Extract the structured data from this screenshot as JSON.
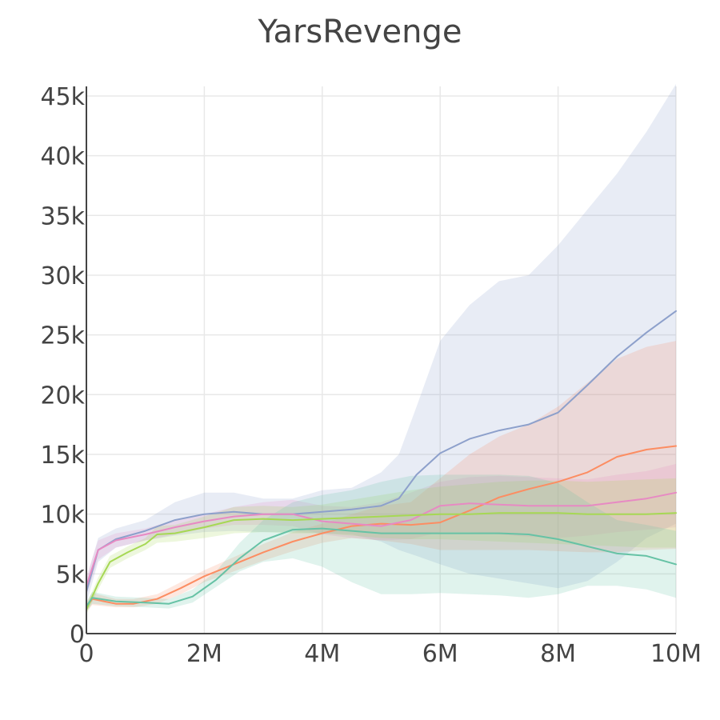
{
  "chart_data": {
    "type": "line",
    "title": "YarsRevenge",
    "xlabel": "",
    "ylabel": "",
    "xlim": [
      0,
      10000000
    ],
    "ylim": [
      0,
      45800
    ],
    "x_ticks": [
      {
        "value": 0,
        "label": "0"
      },
      {
        "value": 2000000,
        "label": "2M"
      },
      {
        "value": 4000000,
        "label": "4M"
      },
      {
        "value": 6000000,
        "label": "6M"
      },
      {
        "value": 8000000,
        "label": "8M"
      },
      {
        "value": 10000000,
        "label": "10M"
      }
    ],
    "y_ticks": [
      {
        "value": 0,
        "label": "0"
      },
      {
        "value": 5000,
        "label": "5k"
      },
      {
        "value": 10000,
        "label": "10k"
      },
      {
        "value": 15000,
        "label": "15k"
      },
      {
        "value": 20000,
        "label": "20k"
      },
      {
        "value": 25000,
        "label": "25k"
      },
      {
        "value": 30000,
        "label": "30k"
      },
      {
        "value": 35000,
        "label": "35k"
      },
      {
        "value": 40000,
        "label": "40k"
      },
      {
        "value": 45000,
        "label": "45k"
      }
    ],
    "grid": true,
    "legend": "none",
    "series": [
      {
        "color": "#8da0cb",
        "x": [
          0,
          200000,
          500000,
          1000000,
          1500000,
          2000000,
          2500000,
          3000000,
          3500000,
          4000000,
          4500000,
          5000000,
          5300000,
          5600000,
          6000000,
          6500000,
          7000000,
          7500000,
          8000000,
          8500000,
          9000000,
          9500000,
          10000000
        ],
        "y": [
          3500,
          7000,
          7900,
          8600,
          9500,
          10000,
          10200,
          10000,
          10000,
          10200,
          10400,
          10700,
          11300,
          13300,
          15100,
          16300,
          17000,
          17500,
          18500,
          20800,
          23200,
          25200,
          27000
        ],
        "lower": [
          2500,
          6000,
          7200,
          7800,
          8200,
          8500,
          8600,
          8500,
          8500,
          8400,
          8300,
          7700,
          7000,
          6500,
          5800,
          5000,
          4600,
          4200,
          3800,
          4400,
          6000,
          8000,
          9200
        ],
        "upper": [
          4500,
          8000,
          8800,
          9500,
          11000,
          11800,
          11800,
          11300,
          11300,
          12000,
          12200,
          13500,
          15000,
          19000,
          24500,
          27500,
          29500,
          30000,
          32500,
          35500,
          38500,
          42000,
          46000
        ]
      },
      {
        "color": "#fc8d62",
        "x": [
          0,
          100000,
          500000,
          800000,
          1200000,
          1600000,
          2000000,
          2500000,
          3000000,
          3500000,
          4000000,
          4500000,
          5000000,
          5500000,
          6000000,
          6500000,
          7000000,
          7500000,
          8000000,
          8500000,
          9000000,
          9500000,
          10000000
        ],
        "y": [
          2200,
          2900,
          2500,
          2500,
          2900,
          3800,
          4800,
          5800,
          6800,
          7700,
          8400,
          9000,
          9200,
          9100,
          9300,
          10300,
          11400,
          12100,
          12700,
          13500,
          14800,
          15400,
          15700
        ],
        "lower": [
          1800,
          2400,
          2200,
          2200,
          2500,
          3300,
          4300,
          5200,
          6100,
          6900,
          7600,
          8000,
          7800,
          7500,
          7000,
          7000,
          7000,
          7000,
          6900,
          6800,
          6800,
          7000,
          7100
        ],
        "upper": [
          2600,
          3400,
          2900,
          2900,
          3300,
          4300,
          5300,
          6400,
          7500,
          8500,
          9200,
          10000,
          10700,
          11000,
          13000,
          15000,
          16500,
          17500,
          19000,
          21000,
          23000,
          24000,
          24500
        ]
      },
      {
        "color": "#e78ac3",
        "x": [
          0,
          200000,
          500000,
          1000000,
          1500000,
          2000000,
          2500000,
          3000000,
          3500000,
          4000000,
          4500000,
          5000000,
          5500000,
          6000000,
          6500000,
          7000000,
          7500000,
          8000000,
          8500000,
          9000000,
          9500000,
          10000000
        ],
        "y": [
          4000,
          7000,
          7800,
          8300,
          8900,
          9400,
          9800,
          10000,
          10000,
          9400,
          9200,
          9000,
          9500,
          10700,
          10900,
          10800,
          10700,
          10700,
          10700,
          11000,
          11300,
          11800
        ],
        "lower": [
          3200,
          6200,
          7200,
          7800,
          8300,
          8800,
          9100,
          9100,
          9000,
          8300,
          8000,
          7800,
          7900,
          8500,
          8500,
          8300,
          8100,
          8000,
          8200,
          8500,
          8700,
          8900
        ],
        "upper": [
          4800,
          7800,
          8400,
          8800,
          9500,
          10000,
          10600,
          11000,
          11200,
          10700,
          10600,
          11000,
          11800,
          12700,
          13100,
          13200,
          13100,
          13000,
          12900,
          13300,
          13600,
          14200
        ]
      },
      {
        "color": "#a6d854",
        "x": [
          0,
          200000,
          400000,
          700000,
          1000000,
          1200000,
          1500000,
          2000000,
          2500000,
          3000000,
          3500000,
          4000000,
          4500000,
          5000000,
          5500000,
          6000000,
          6500000,
          7000000,
          7500000,
          8000000,
          8500000,
          9000000,
          9500000,
          10000000
        ],
        "y": [
          2000,
          4200,
          6000,
          6800,
          7500,
          8300,
          8400,
          8900,
          9500,
          9600,
          9500,
          9600,
          9700,
          9800,
          9900,
          10000,
          10000,
          10100,
          10100,
          10100,
          10000,
          10000,
          10000,
          10100
        ],
        "lower": [
          1600,
          3700,
          5500,
          6300,
          7000,
          7600,
          7700,
          8000,
          8400,
          8500,
          8400,
          8400,
          8200,
          8000,
          7900,
          7900,
          7800,
          7700,
          7600,
          7500,
          7400,
          7300,
          7200,
          7200
        ],
        "upper": [
          2400,
          4700,
          6500,
          7300,
          8000,
          9000,
          9100,
          9800,
          10600,
          10700,
          10600,
          10800,
          11200,
          11600,
          12000,
          12300,
          12500,
          12700,
          12800,
          12800,
          12700,
          12800,
          12900,
          13000
        ]
      },
      {
        "color": "#66c2a5",
        "x": [
          0,
          100000,
          500000,
          1000000,
          1400000,
          1800000,
          2200000,
          2600000,
          3000000,
          3500000,
          4000000,
          4500000,
          5000000,
          5500000,
          6000000,
          6500000,
          7000000,
          7500000,
          8000000,
          8500000,
          9000000,
          9500000,
          10000000
        ],
        "y": [
          2300,
          3000,
          2700,
          2600,
          2500,
          3100,
          4500,
          6300,
          7800,
          8700,
          8800,
          8600,
          8400,
          8400,
          8400,
          8400,
          8400,
          8300,
          7900,
          7300,
          6700,
          6500,
          5800
        ],
        "lower": [
          1900,
          2500,
          2300,
          2200,
          2100,
          2600,
          3900,
          5200,
          6000,
          6300,
          5600,
          4300,
          3300,
          3300,
          3400,
          3300,
          3200,
          3000,
          3300,
          4000,
          4000,
          3700,
          3000
        ],
        "upper": [
          2700,
          3500,
          3100,
          3000,
          2900,
          3700,
          5200,
          7600,
          9500,
          11000,
          11600,
          12000,
          12700,
          13200,
          13300,
          13300,
          13300,
          13200,
          12600,
          11000,
          9500,
          9100,
          8600
        ]
      }
    ]
  }
}
